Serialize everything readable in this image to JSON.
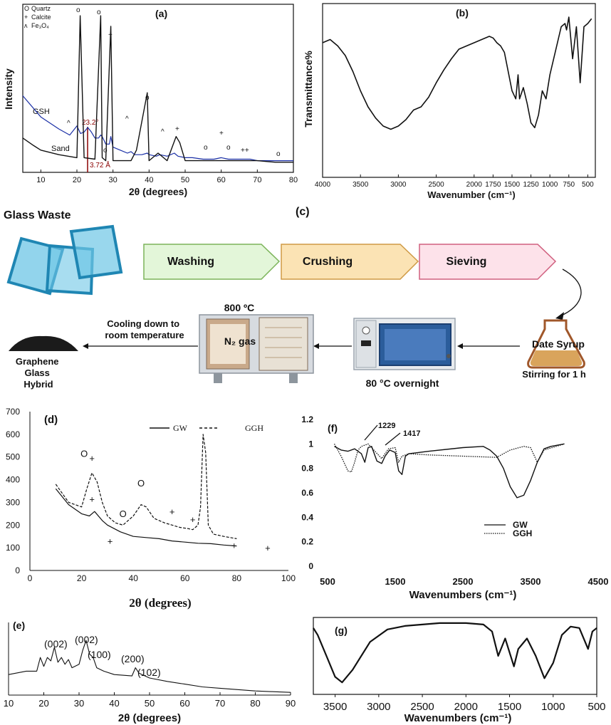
{
  "figure": {
    "panel_a": {
      "label": "(a)",
      "legend": [
        "Quartz",
        "Calcite",
        "Fe₃O₄"
      ],
      "legend_symbols": [
        "O",
        "+",
        "ʌ"
      ],
      "series_labels": [
        "GSH",
        "Sand"
      ],
      "annotations": [
        "23.2°",
        "3.72 Å"
      ],
      "ylabel": "Intensity",
      "xlabel": "2θ (degrees)"
    },
    "panel_b": {
      "label": "(b)",
      "ylabel": "Transmittance%",
      "xlabel": "Wavenumber (cm⁻¹)"
    },
    "panel_c": {
      "label": "(c)",
      "title": "Glass Waste",
      "steps": [
        "Washing",
        "Crushing",
        "Sieving"
      ],
      "date_syrup": "Date Syrup",
      "stirring": "Stirring for 1 h",
      "oven_temp": "80 °C overnight",
      "furnace_temp": "800 ºC",
      "furnace_gas": "N₂ gas",
      "cooling": "Cooling down to room temperature",
      "product": "Graphene Glass Hybrid"
    },
    "panel_d": {
      "label": "(d)",
      "legend": [
        "GW",
        "GGH"
      ],
      "xlabel": "2θ (degrees)"
    },
    "panel_e": {
      "label": "(e)",
      "peaks": [
        "(002)",
        "(002)",
        "(100)",
        "(200)",
        "(102)"
      ],
      "xlabel": "2θ (degrees)"
    },
    "panel_f": {
      "label": "(f)",
      "legend": [
        "GW",
        "GGH"
      ],
      "annotations": [
        "1229",
        "1417"
      ],
      "xlabel": "Wavenumbers (cm⁻¹)"
    },
    "panel_g": {
      "label": "(g)",
      "xlabel": "Wavenumbers (cm⁻¹)"
    }
  },
  "chart_data": [
    {
      "id": "a",
      "type": "line",
      "title": "(a)",
      "xlabel": "2θ (degrees)",
      "ylabel": "Intensity",
      "xlim": [
        5,
        80
      ],
      "xticks": [
        10,
        20,
        30,
        40,
        50,
        60,
        70,
        80
      ],
      "series": [
        {
          "name": "GSH",
          "x": [
            5,
            10,
            15,
            18,
            20,
            21,
            22,
            23,
            24,
            25,
            26,
            26.6,
            27,
            28,
            29,
            29.4,
            30,
            32,
            34,
            35,
            36,
            38,
            39.5,
            40,
            42,
            43,
            45,
            47,
            48,
            50,
            52,
            55,
            58,
            60,
            62,
            65,
            68,
            70,
            75,
            80
          ],
          "y": [
            0.46,
            0.32,
            0.24,
            0.2,
            0.26,
            0.21,
            0.22,
            0.25,
            0.22,
            0.18,
            0.18,
            0.2,
            0.19,
            0.14,
            0.14,
            0.19,
            0.12,
            0.1,
            0.08,
            0.09,
            0.07,
            0.07,
            0.08,
            0.07,
            0.06,
            0.07,
            0.06,
            0.08,
            0.06,
            0.05,
            0.05,
            0.04,
            0.04,
            0.05,
            0.04,
            0.04,
            0.04,
            0.03,
            0.03,
            0.03
          ]
        },
        {
          "name": "Sand",
          "x": [
            5,
            8,
            10,
            15,
            20,
            20.9,
            22,
            25,
            26.6,
            27,
            28,
            29.4,
            30,
            35,
            36.5,
            39.5,
            40,
            42.5,
            45,
            47.5,
            48.5,
            50,
            55,
            60,
            65,
            68,
            70,
            75,
            80
          ],
          "y": [
            0.18,
            0.13,
            0.1,
            0.07,
            0.05,
            0.99,
            0.05,
            0.04,
            0.99,
            0.05,
            0.03,
            0.92,
            0.03,
            0.03,
            0.1,
            0.48,
            0.03,
            0.08,
            0.03,
            0.19,
            0.15,
            0.03,
            0.03,
            0.03,
            0.03,
            0.03,
            0.03,
            0.02,
            0.02
          ]
        }
      ]
    },
    {
      "id": "b",
      "type": "line",
      "title": "(b)",
      "xlabel": "Wavenumber (cm⁻¹)",
      "ylabel": "Transmittance%",
      "xlim": [
        4000,
        400
      ],
      "xticks": [
        4000,
        3500,
        3000,
        2500,
        2000,
        1750,
        1500,
        1250,
        1000,
        750,
        500
      ],
      "series": [
        {
          "name": "FTIR",
          "x": [
            4000,
            3900,
            3800,
            3700,
            3600,
            3500,
            3400,
            3300,
            3200,
            3100,
            3000,
            2900,
            2800,
            2700,
            2600,
            2500,
            2400,
            2300,
            2200,
            2100,
            2000,
            1900,
            1800,
            1750,
            1700,
            1650,
            1600,
            1500,
            1450,
            1420,
            1400,
            1350,
            1300,
            1250,
            1200,
            1150,
            1100,
            1050,
            1000,
            950,
            900,
            850,
            800,
            780,
            750,
            700,
            650,
            600,
            550,
            500,
            450
          ],
          "y": [
            0.8,
            0.82,
            0.78,
            0.72,
            0.62,
            0.5,
            0.4,
            0.33,
            0.28,
            0.26,
            0.28,
            0.32,
            0.38,
            0.4,
            0.46,
            0.55,
            0.63,
            0.7,
            0.76,
            0.78,
            0.8,
            0.82,
            0.84,
            0.83,
            0.8,
            0.78,
            0.74,
            0.5,
            0.45,
            0.6,
            0.45,
            0.52,
            0.42,
            0.3,
            0.27,
            0.35,
            0.5,
            0.45,
            0.6,
            0.7,
            0.8,
            0.9,
            0.92,
            0.88,
            0.96,
            0.7,
            0.9,
            0.55,
            0.9,
            0.92,
            0.95
          ]
        }
      ]
    },
    {
      "id": "d",
      "type": "line",
      "title": "(d)",
      "xlabel": "2θ (degrees)",
      "ylabel": "",
      "xlim": [
        0,
        100
      ],
      "ylim": [
        0,
        700
      ],
      "xticks": [
        0,
        20,
        40,
        60,
        80,
        100
      ],
      "yticks": [
        0,
        100,
        200,
        300,
        400,
        500,
        600,
        700
      ],
      "legend_position": "top-right",
      "series": [
        {
          "name": "GW",
          "style": "solid",
          "x": [
            10,
            15,
            20,
            23,
            25,
            28,
            30,
            35,
            40,
            45,
            50,
            55,
            60,
            65,
            70,
            75,
            80
          ],
          "y": [
            360,
            290,
            250,
            240,
            260,
            220,
            200,
            170,
            150,
            145,
            140,
            130,
            125,
            120,
            118,
            112,
            108
          ]
        },
        {
          "name": "GGH",
          "style": "dashed",
          "x": [
            10,
            15,
            20,
            22,
            24,
            26,
            28,
            30,
            33,
            36,
            40,
            43,
            45,
            48,
            52,
            55,
            58,
            61,
            63,
            65,
            66,
            67,
            68,
            69,
            71,
            75,
            80
          ],
          "y": [
            380,
            300,
            280,
            360,
            430,
            390,
            300,
            240,
            210,
            200,
            240,
            290,
            280,
            230,
            210,
            200,
            190,
            185,
            180,
            200,
            280,
            600,
            520,
            200,
            160,
            150,
            140
          ]
        }
      ],
      "markers": [
        {
          "symbol": "O",
          "x": 21,
          "y": 500
        },
        {
          "symbol": "+",
          "x": 24,
          "y": 480
        },
        {
          "symbol": "+",
          "x": 24,
          "y": 300
        },
        {
          "symbol": "O",
          "x": 36,
          "y": 235
        },
        {
          "symbol": "O",
          "x": 43,
          "y": 370
        },
        {
          "symbol": "+",
          "x": 31,
          "y": 115
        },
        {
          "symbol": "+",
          "x": 55,
          "y": 245
        },
        {
          "symbol": "+",
          "x": 63,
          "y": 210
        },
        {
          "symbol": "+",
          "x": 79,
          "y": 95
        },
        {
          "symbol": "+",
          "x": 92,
          "y": 85
        }
      ]
    },
    {
      "id": "e",
      "type": "line",
      "title": "(e)",
      "xlabel": "2θ (degrees)",
      "ylabel": "",
      "xlim": [
        10,
        90
      ],
      "xticks": [
        10,
        20,
        30,
        40,
        50,
        60,
        70,
        80,
        90
      ],
      "series": [
        {
          "name": "XRD",
          "x": [
            10,
            15,
            18,
            19,
            20,
            21,
            22,
            23,
            24,
            25,
            26,
            27,
            28,
            30,
            31,
            32,
            33,
            34,
            35,
            37,
            40,
            45,
            46,
            47,
            50,
            55,
            60,
            65,
            70,
            75,
            80,
            85,
            90
          ],
          "y": [
            0.3,
            0.35,
            0.35,
            0.55,
            0.42,
            0.55,
            0.5,
            0.7,
            0.48,
            0.55,
            0.45,
            0.52,
            0.4,
            0.45,
            0.65,
            0.8,
            0.6,
            0.55,
            0.4,
            0.35,
            0.3,
            0.28,
            0.4,
            0.32,
            0.25,
            0.2,
            0.16,
            0.12,
            0.1,
            0.08,
            0.06,
            0.05,
            0.04
          ]
        }
      ]
    },
    {
      "id": "f",
      "type": "line",
      "title": "(f)",
      "xlabel": "Wavenumbers (cm⁻¹)",
      "ylabel": "",
      "xlim": [
        500,
        4500
      ],
      "ylim": [
        0,
        1.2
      ],
      "xticks": [
        500,
        1500,
        2500,
        3500,
        4500
      ],
      "yticks": [
        0,
        0.2,
        0.4,
        0.6,
        0.8,
        1,
        1.2
      ],
      "legend_position": "bottom-right",
      "series": [
        {
          "name": "GW",
          "style": "solid",
          "x": [
            600,
            700,
            800,
            900,
            1000,
            1050,
            1100,
            1150,
            1229,
            1300,
            1350,
            1417,
            1500,
            1550,
            1600,
            1650,
            1700,
            2000,
            2500,
            2800,
            2900,
            3000,
            3100,
            3200,
            3300,
            3400,
            3500,
            3600,
            3700,
            3800,
            4000
          ],
          "y": [
            0.98,
            0.95,
            0.94,
            0.96,
            0.92,
            0.85,
            0.97,
            0.98,
            0.86,
            0.84,
            0.9,
            0.95,
            0.93,
            0.78,
            0.75,
            0.9,
            0.92,
            0.94,
            0.97,
            0.98,
            0.95,
            0.9,
            0.8,
            0.65,
            0.56,
            0.58,
            0.7,
            0.85,
            0.96,
            0.98,
            1.0
          ]
        },
        {
          "name": "GGH",
          "style": "dotted",
          "x": [
            600,
            700,
            800,
            850,
            900,
            950,
            1000,
            1100,
            1200,
            1300,
            1400,
            1500,
            1550,
            1600,
            1700,
            2000,
            2500,
            3000,
            3200,
            3400,
            3500,
            3600,
            3700,
            4000
          ],
          "y": [
            1.0,
            0.9,
            0.78,
            0.77,
            0.85,
            0.95,
            0.98,
            1.0,
            0.94,
            0.88,
            0.96,
            0.97,
            0.85,
            0.9,
            0.92,
            0.91,
            0.9,
            0.89,
            0.95,
            0.98,
            0.97,
            0.85,
            0.95,
            1.0
          ]
        }
      ]
    },
    {
      "id": "g",
      "type": "line",
      "title": "(g)",
      "xlabel": "Wavenumbers (cm⁻¹)",
      "ylabel": "",
      "xlim": [
        3750,
        500
      ],
      "xticks": [
        3500,
        3000,
        2500,
        2000,
        1500,
        1000,
        500
      ],
      "series": [
        {
          "name": "FTIR",
          "x": [
            3750,
            3700,
            3600,
            3500,
            3420,
            3300,
            3100,
            2900,
            2700,
            2500,
            2300,
            2000,
            1800,
            1700,
            1630,
            1550,
            1450,
            1400,
            1300,
            1200,
            1100,
            1000,
            900,
            800,
            700,
            600,
            550,
            500
          ],
          "y": [
            0.9,
            0.8,
            0.5,
            0.2,
            0.12,
            0.3,
            0.7,
            0.88,
            0.93,
            0.95,
            0.97,
            0.97,
            0.95,
            0.85,
            0.5,
            0.75,
            0.35,
            0.6,
            0.75,
            0.5,
            0.18,
            0.4,
            0.8,
            0.92,
            0.9,
            0.6,
            0.85,
            0.9
          ]
        }
      ]
    }
  ]
}
